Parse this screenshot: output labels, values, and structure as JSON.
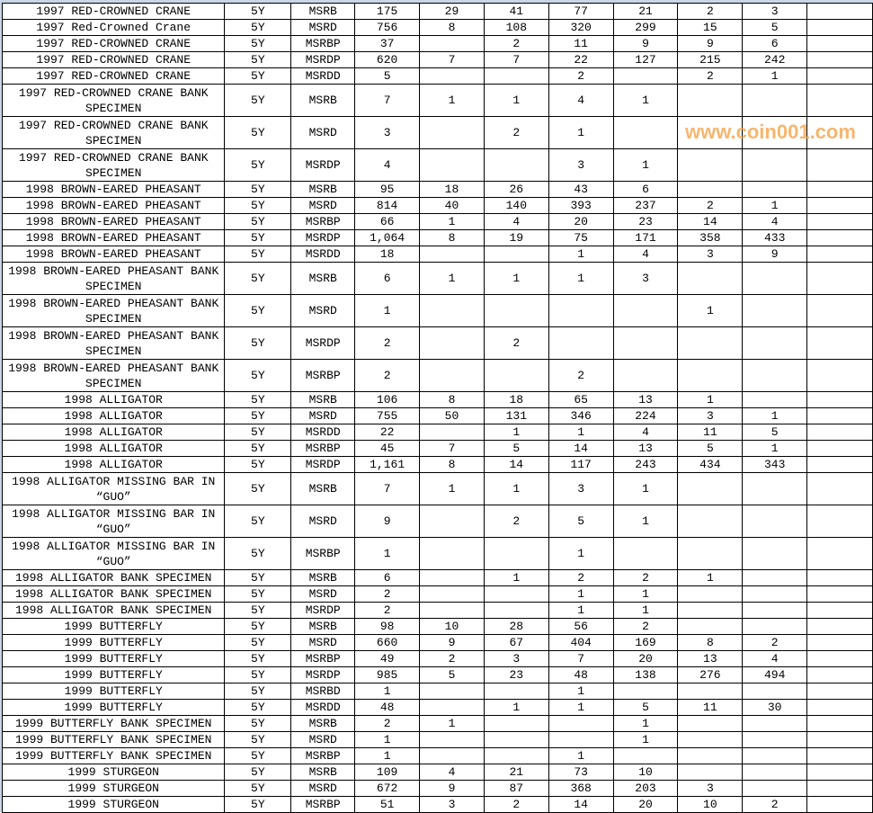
{
  "sheet": {
    "rows": [
      [
        "1997 RED-CROWNED CRANE",
        "5Y",
        "MSRB",
        "175",
        "29",
        "41",
        "77",
        "21",
        "2",
        "3",
        ""
      ],
      [
        "1997 Red-Crowned Crane",
        "5Y",
        "MSRD",
        "756",
        "8",
        "108",
        "320",
        "299",
        "15",
        "5",
        ""
      ],
      [
        "1997 RED-CROWNED CRANE",
        "5Y",
        "MSRBP",
        "37",
        "",
        "2",
        "11",
        "9",
        "9",
        "6",
        ""
      ],
      [
        "1997 RED-CROWNED CRANE",
        "5Y",
        "MSRDP",
        "620",
        "7",
        "7",
        "22",
        "127",
        "215",
        "242",
        ""
      ],
      [
        "1997 RED-CROWNED CRANE",
        "5Y",
        "MSRDD",
        "5",
        "",
        "",
        "2",
        "",
        "2",
        "1",
        ""
      ],
      [
        "1997 RED-CROWNED CRANE BANK SPECIMEN",
        "5Y",
        "MSRB",
        "7",
        "1",
        "1",
        "4",
        "1",
        "",
        "",
        ""
      ],
      [
        "1997 RED-CROWNED CRANE BANK SPECIMEN",
        "5Y",
        "MSRD",
        "3",
        "",
        "2",
        "1",
        "",
        "",
        "",
        ""
      ],
      [
        "1997 RED-CROWNED CRANE BANK SPECIMEN",
        "5Y",
        "MSRDP",
        "4",
        "",
        "",
        "3",
        "1",
        "",
        "",
        ""
      ],
      [
        "1998 BROWN-EARED PHEASANT",
        "5Y",
        "MSRB",
        "95",
        "18",
        "26",
        "43",
        "6",
        "",
        "",
        ""
      ],
      [
        "1998 BROWN-EARED PHEASANT",
        "5Y",
        "MSRD",
        "814",
        "40",
        "140",
        "393",
        "237",
        "2",
        "1",
        ""
      ],
      [
        "1998 BROWN-EARED PHEASANT",
        "5Y",
        "MSRBP",
        "66",
        "1",
        "4",
        "20",
        "23",
        "14",
        "4",
        ""
      ],
      [
        "1998 BROWN-EARED PHEASANT",
        "5Y",
        "MSRDP",
        "1,064",
        "8",
        "19",
        "75",
        "171",
        "358",
        "433",
        ""
      ],
      [
        "1998 BROWN-EARED PHEASANT",
        "5Y",
        "MSRDD",
        "18",
        "",
        "",
        "1",
        "4",
        "3",
        "9",
        ""
      ],
      [
        "1998 BROWN-EARED PHEASANT BANK SPECIMEN",
        "5Y",
        "MSRB",
        "6",
        "1",
        "1",
        "1",
        "3",
        "",
        "",
        ""
      ],
      [
        "1998 BROWN-EARED PHEASANT BANK SPECIMEN",
        "5Y",
        "MSRD",
        "1",
        "",
        "",
        "",
        "",
        "1",
        "",
        ""
      ],
      [
        "1998 BROWN-EARED PHEASANT BANK SPECIMEN",
        "5Y",
        "MSRDP",
        "2",
        "",
        "2",
        "",
        "",
        "",
        "",
        ""
      ],
      [
        "1998 BROWN-EARED PHEASANT BANK SPECIMEN",
        "5Y",
        "MSRBP",
        "2",
        "",
        "",
        "2",
        "",
        "",
        "",
        ""
      ],
      [
        "1998 ALLIGATOR",
        "5Y",
        "MSRB",
        "106",
        "8",
        "18",
        "65",
        "13",
        "1",
        "",
        ""
      ],
      [
        "1998 ALLIGATOR",
        "5Y",
        "MSRD",
        "755",
        "50",
        "131",
        "346",
        "224",
        "3",
        "1",
        ""
      ],
      [
        "1998 ALLIGATOR",
        "5Y",
        "MSRDD",
        "22",
        "",
        "1",
        "1",
        "4",
        "11",
        "5",
        ""
      ],
      [
        "1998 ALLIGATOR",
        "5Y",
        "MSRBP",
        "45",
        "7",
        "5",
        "14",
        "13",
        "5",
        "1",
        ""
      ],
      [
        "1998 ALLIGATOR",
        "5Y",
        "MSRDP",
        "1,161",
        "8",
        "14",
        "117",
        "243",
        "434",
        "343",
        ""
      ],
      [
        "1998 ALLIGATOR MISSING BAR IN “GUO”",
        "5Y",
        "MSRB",
        "7",
        "1",
        "1",
        "3",
        "1",
        "",
        "",
        ""
      ],
      [
        "1998 ALLIGATOR MISSING BAR IN “GUO”",
        "5Y",
        "MSRD",
        "9",
        "",
        "2",
        "5",
        "1",
        "",
        "",
        ""
      ],
      [
        "1998 ALLIGATOR MISSING BAR IN “GUO”",
        "5Y",
        "MSRBP",
        "1",
        "",
        "",
        "1",
        "",
        "",
        "",
        ""
      ],
      [
        "1998 ALLIGATOR BANK SPECIMEN",
        "5Y",
        "MSRB",
        "6",
        "",
        "1",
        "2",
        "2",
        "1",
        "",
        ""
      ],
      [
        "1998 ALLIGATOR BANK SPECIMEN",
        "5Y",
        "MSRD",
        "2",
        "",
        "",
        "1",
        "1",
        "",
        "",
        ""
      ],
      [
        "1998 ALLIGATOR BANK SPECIMEN",
        "5Y",
        "MSRDP",
        "2",
        "",
        "",
        "1",
        "1",
        "",
        "",
        ""
      ],
      [
        "1999 BUTTERFLY",
        "5Y",
        "MSRB",
        "98",
        "10",
        "28",
        "56",
        "2",
        "",
        "",
        ""
      ],
      [
        "1999 BUTTERFLY",
        "5Y",
        "MSRD",
        "660",
        "9",
        "67",
        "404",
        "169",
        "8",
        "2",
        ""
      ],
      [
        "1999 BUTTERFLY",
        "5Y",
        "MSRBP",
        "49",
        "2",
        "3",
        "7",
        "20",
        "13",
        "4",
        ""
      ],
      [
        "1999 BUTTERFLY",
        "5Y",
        "MSRDP",
        "985",
        "5",
        "23",
        "48",
        "138",
        "276",
        "494",
        ""
      ],
      [
        "1999 BUTTERFLY",
        "5Y",
        "MSRBD",
        "1",
        "",
        "",
        "1",
        "",
        "",
        "",
        ""
      ],
      [
        "1999 BUTTERFLY",
        "5Y",
        "MSRDD",
        "48",
        "",
        "1",
        "1",
        "5",
        "11",
        "30",
        ""
      ],
      [
        "1999 BUTTERFLY BANK SPECIMEN",
        "5Y",
        "MSRB",
        "2",
        "1",
        "",
        "",
        "1",
        "",
        "",
        ""
      ],
      [
        "1999 BUTTERFLY BANK SPECIMEN",
        "5Y",
        "MSRD",
        "1",
        "",
        "",
        "",
        "1",
        "",
        "",
        ""
      ],
      [
        "1999 BUTTERFLY BANK SPECIMEN",
        "5Y",
        "MSRBP",
        "1",
        "",
        "",
        "1",
        "",
        "",
        "",
        ""
      ],
      [
        "1999 STURGEON",
        "5Y",
        "MSRB",
        "109",
        "4",
        "21",
        "73",
        "10",
        "",
        "",
        ""
      ],
      [
        "1999 STURGEON",
        "5Y",
        "MSRD",
        "672",
        "9",
        "87",
        "368",
        "203",
        "3",
        "",
        ""
      ],
      [
        "1999 STURGEON",
        "5Y",
        "MSRBP",
        "51",
        "3",
        "2",
        "14",
        "20",
        "10",
        "2",
        ""
      ]
    ]
  },
  "watermark": "www.coin001.com",
  "colors": {
    "watermark": "#f5a54a",
    "grid": "#000000"
  }
}
